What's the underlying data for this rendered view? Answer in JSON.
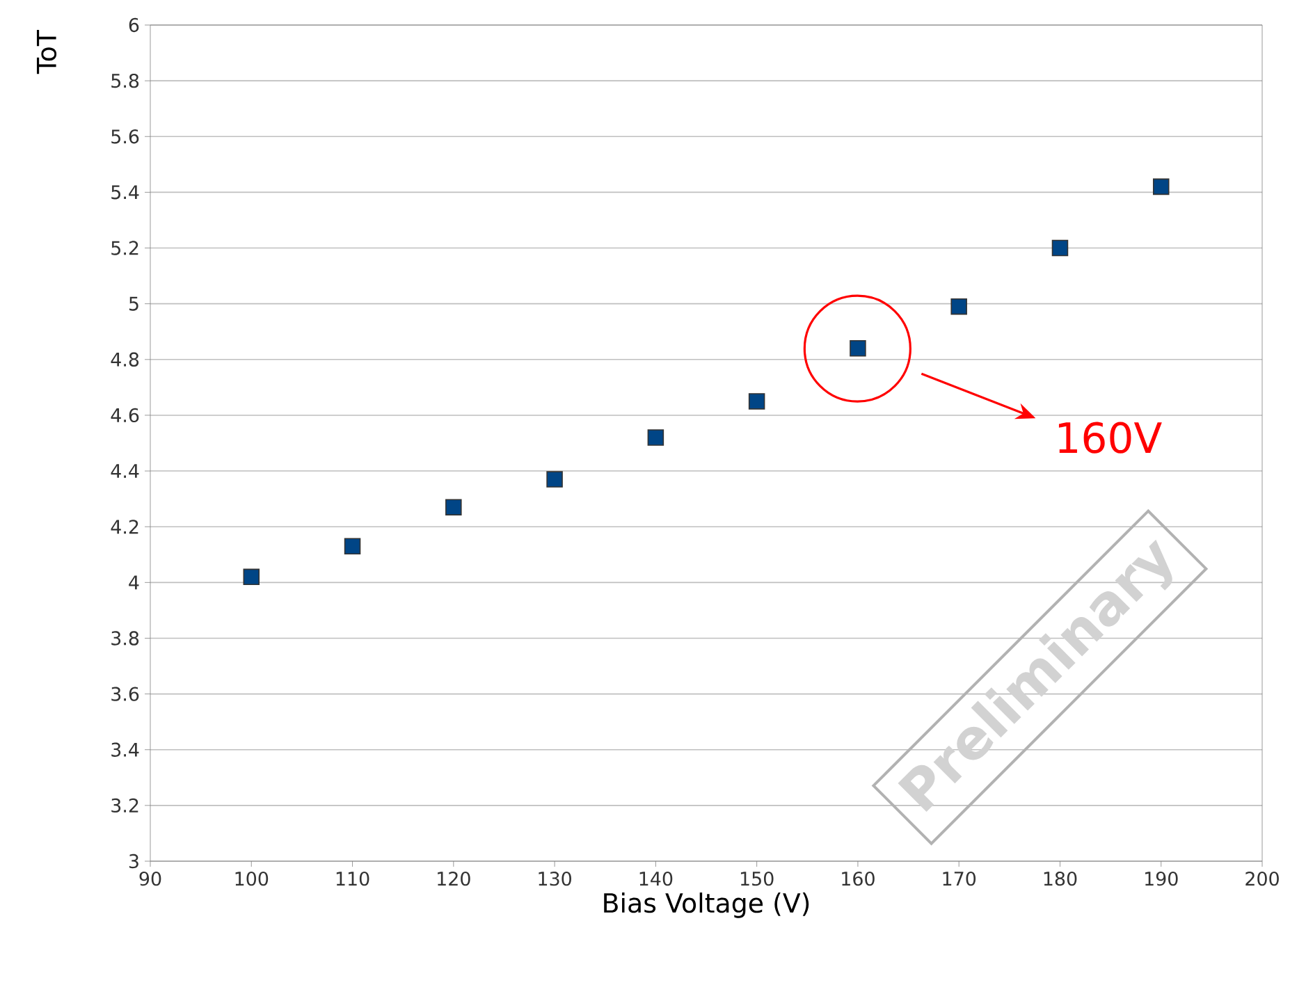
{
  "chart_data": {
    "type": "scatter",
    "xlabel": "Bias Voltage (V)",
    "ylabel": "ToT",
    "x": [
      100,
      110,
      120,
      130,
      140,
      150,
      160,
      170,
      180,
      190
    ],
    "values": [
      4.02,
      4.13,
      4.27,
      4.37,
      4.52,
      4.65,
      4.84,
      4.99,
      5.2,
      5.42
    ],
    "color": "#004586",
    "marker": "square",
    "xlim": [
      90,
      200
    ],
    "xticks": [
      90,
      100,
      110,
      120,
      130,
      140,
      150,
      160,
      170,
      180,
      190,
      200
    ],
    "ylim": [
      3,
      6
    ],
    "yticks": [
      3,
      3.2,
      3.4,
      3.6,
      3.8,
      4,
      4.2,
      4.4,
      4.6,
      4.8,
      5,
      5.2,
      5.4,
      5.6,
      5.8,
      6
    ],
    "grid": "y",
    "annotations": [
      "160V",
      "Preliminary"
    ]
  }
}
